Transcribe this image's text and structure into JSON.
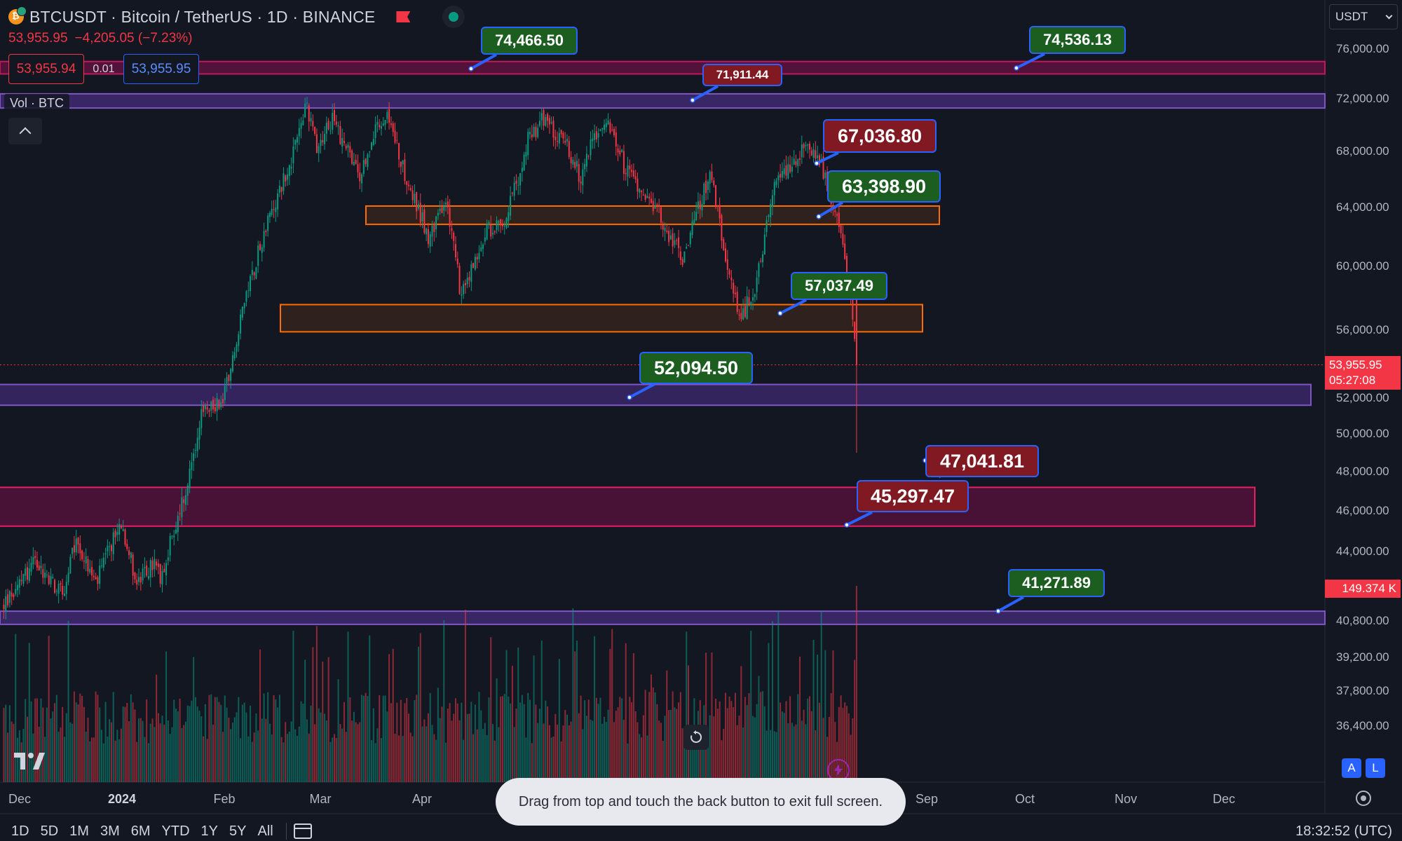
{
  "header": {
    "title": "BTCUSDT · Bitcoin / TetherUS · 1D · BINANCE",
    "coin_symbol": "₿",
    "last_price": "53,955.95",
    "change": "−4,205.05 (−7.23%)",
    "flag_icon": "flag-icon",
    "market_status_color": "#089981"
  },
  "trade": {
    "bid": "53,955.94",
    "spread": "0.01",
    "ask": "53,955.95"
  },
  "volume_legend": "Vol · BTC",
  "currency_select": "USDT",
  "price_axis": {
    "labels": [
      "76,000.00",
      "72,000.00",
      "68,000.00",
      "64,000.00",
      "60,000.00",
      "56,000.00",
      "52,000.00",
      "50,000.00",
      "48,000.00",
      "46,000.00",
      "44,000.00",
      "40,800.00",
      "39,200.00",
      "37,800.00",
      "36,400.00"
    ],
    "current_price": "53,955.95",
    "countdown": "05:27:08",
    "volume_label": "149.374 K"
  },
  "time_axis": [
    "Dec",
    "2024",
    "Feb",
    "Mar",
    "Apr",
    "Sep",
    "Oct",
    "Nov",
    "Dec"
  ],
  "callouts": [
    {
      "text": "74,466.50",
      "kind": "green"
    },
    {
      "text": "74,536.13",
      "kind": "green"
    },
    {
      "text": "71,911.44",
      "kind": "red"
    },
    {
      "text": "67,036.80",
      "kind": "red"
    },
    {
      "text": "63,398.90",
      "kind": "green"
    },
    {
      "text": "57,037.49",
      "kind": "green"
    },
    {
      "text": "52,094.50",
      "kind": "green"
    },
    {
      "text": "47,041.81",
      "kind": "red"
    },
    {
      "text": "45,297.47",
      "kind": "red"
    },
    {
      "text": "41,271.89",
      "kind": "green"
    }
  ],
  "toast": "Drag from top and touch the back button to exit full screen.",
  "ranges": [
    "1D",
    "5D",
    "1M",
    "3M",
    "6M",
    "YTD",
    "1Y",
    "5Y",
    "All"
  ],
  "clock": "18:32:52 (UTC)",
  "scale_buttons": {
    "auto": "A",
    "log": "L"
  },
  "colors": {
    "up": "#089981",
    "down": "#f23645",
    "accent": "#2962ff",
    "zone_purple": "#7e57c2",
    "zone_orange": "#ff6d00"
  },
  "chart_data": {
    "type": "candlestick",
    "symbol": "BTCUSDT",
    "interval": "1D",
    "ylim": [
      35000,
      77500
    ],
    "last_close": 53955.95,
    "last_volume_k": 149.374,
    "monthly_path": [
      [
        0,
        41500
      ],
      [
        15,
        43500
      ],
      [
        30,
        42000
      ],
      [
        37,
        44500
      ],
      [
        47,
        42500
      ],
      [
        60,
        45500
      ],
      [
        68,
        42500
      ],
      [
        77,
        43500
      ],
      [
        80,
        42800
      ],
      [
        93,
        47000
      ],
      [
        101,
        51000
      ],
      [
        112,
        52000
      ],
      [
        131,
        61500
      ],
      [
        146,
        67000
      ],
      [
        155,
        71500
      ],
      [
        160,
        68500
      ],
      [
        168,
        70500
      ],
      [
        182,
        66000
      ],
      [
        190,
        69500
      ],
      [
        197,
        70500
      ],
      [
        206,
        66000
      ],
      [
        217,
        62000
      ],
      [
        226,
        64500
      ],
      [
        234,
        58000
      ],
      [
        247,
        62500
      ],
      [
        255,
        63000
      ],
      [
        262,
        65500
      ],
      [
        268,
        69000
      ],
      [
        276,
        70500
      ],
      [
        288,
        68500
      ],
      [
        295,
        66000
      ],
      [
        302,
        69500
      ],
      [
        311,
        70000
      ],
      [
        317,
        67000
      ],
      [
        331,
        64500
      ],
      [
        347,
        60500
      ],
      [
        361,
        66500
      ],
      [
        368,
        61500
      ],
      [
        376,
        56500
      ],
      [
        385,
        59000
      ],
      [
        393,
        65000
      ],
      [
        402,
        67000
      ],
      [
        410,
        68500
      ],
      [
        418,
        67000
      ],
      [
        424,
        64000
      ],
      [
        429,
        61500
      ],
      [
        433,
        58200
      ],
      [
        436,
        54000
      ]
    ]
  }
}
